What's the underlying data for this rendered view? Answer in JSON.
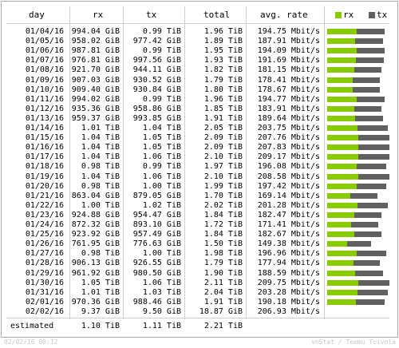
{
  "header": {
    "day": "day",
    "rx": "rx",
    "tx": "tx",
    "total": "total",
    "rate": "avg. rate"
  },
  "legend": {
    "rx": "rx",
    "tx": "tx",
    "rx_color": "#88cc00",
    "tx_color": "#606060"
  },
  "rows": [
    {
      "day": "01/04/16",
      "rx": "994.04 GiB",
      "tx": "0.99 TiB",
      "total": "1.96 TiB",
      "rate": "194.75 Mbit/s",
      "rx_frac": 0.52,
      "tx_frac": 0.48
    },
    {
      "day": "01/05/16",
      "rx": "958.02 GiB",
      "tx": "977.42 GiB",
      "total": "1.89 TiB",
      "rate": "187.91 Mbit/s",
      "rx_frac": 0.5,
      "tx_frac": 0.5
    },
    {
      "day": "01/06/16",
      "rx": "987.81 GiB",
      "tx": "0.99 TiB",
      "total": "1.95 TiB",
      "rate": "194.09 Mbit/s",
      "rx_frac": 0.52,
      "tx_frac": 0.48
    },
    {
      "day": "01/07/16",
      "rx": "976.81 GiB",
      "tx": "997.56 GiB",
      "total": "1.93 TiB",
      "rate": "191.69 Mbit/s",
      "rx_frac": 0.51,
      "tx_frac": 0.49
    },
    {
      "day": "01/08/16",
      "rx": "921.70 GiB",
      "tx": "944.11 GiB",
      "total": "1.82 TiB",
      "rate": "181.15 Mbit/s",
      "rx_frac": 0.5,
      "tx_frac": 0.5
    },
    {
      "day": "01/09/16",
      "rx": "907.03 GiB",
      "tx": "930.52 GiB",
      "total": "1.79 TiB",
      "rate": "178.41 Mbit/s",
      "rx_frac": 0.48,
      "tx_frac": 0.52
    },
    {
      "day": "01/10/16",
      "rx": "909.40 GiB",
      "tx": "930.84 GiB",
      "total": "1.80 TiB",
      "rate": "178.67 Mbit/s",
      "rx_frac": 0.48,
      "tx_frac": 0.52
    },
    {
      "day": "01/11/16",
      "rx": "994.02 GiB",
      "tx": "0.99 TiB",
      "total": "1.96 TiB",
      "rate": "194.77 Mbit/s",
      "rx_frac": 0.52,
      "tx_frac": 0.48
    },
    {
      "day": "01/12/16",
      "rx": "935.36 GiB",
      "tx": "958.86 GiB",
      "total": "1.85 TiB",
      "rate": "183.91 Mbit/s",
      "rx_frac": 0.5,
      "tx_frac": 0.5
    },
    {
      "day": "01/13/16",
      "rx": "959.37 GiB",
      "tx": "993.85 GiB",
      "total": "1.91 TiB",
      "rate": "189.64 Mbit/s",
      "rx_frac": 0.5,
      "tx_frac": 0.5
    },
    {
      "day": "01/14/16",
      "rx": "1.01 TiB",
      "tx": "1.04 TiB",
      "total": "2.05 TiB",
      "rate": "203.75 Mbit/s",
      "rx_frac": 0.5,
      "tx_frac": 0.5
    },
    {
      "day": "01/15/16",
      "rx": "1.04 TiB",
      "tx": "1.05 TiB",
      "total": "2.09 TiB",
      "rate": "207.76 Mbit/s",
      "rx_frac": 0.5,
      "tx_frac": 0.5
    },
    {
      "day": "01/16/16",
      "rx": "1.04 TiB",
      "tx": "1.05 TiB",
      "total": "2.09 TiB",
      "rate": "207.83 Mbit/s",
      "rx_frac": 0.5,
      "tx_frac": 0.5
    },
    {
      "day": "01/17/16",
      "rx": "1.04 TiB",
      "tx": "1.06 TiB",
      "total": "2.10 TiB",
      "rate": "209.17 Mbit/s",
      "rx_frac": 0.5,
      "tx_frac": 0.5
    },
    {
      "day": "01/18/16",
      "rx": "0.98 TiB",
      "tx": "0.99 TiB",
      "total": "1.97 TiB",
      "rate": "196.08 Mbit/s",
      "rx_frac": 0.5,
      "tx_frac": 0.5
    },
    {
      "day": "01/19/16",
      "rx": "1.04 TiB",
      "tx": "1.06 TiB",
      "total": "2.10 TiB",
      "rate": "208.58 Mbit/s",
      "rx_frac": 0.5,
      "tx_frac": 0.5
    },
    {
      "day": "01/20/16",
      "rx": "0.98 TiB",
      "tx": "1.00 TiB",
      "total": "1.99 TiB",
      "rate": "197.42 Mbit/s",
      "rx_frac": 0.5,
      "tx_frac": 0.5
    },
    {
      "day": "01/21/16",
      "rx": "863.04 GiB",
      "tx": "879.05 GiB",
      "total": "1.70 TiB",
      "rate": "169.14 Mbit/s",
      "rx_frac": 0.46,
      "tx_frac": 0.54
    },
    {
      "day": "01/22/16",
      "rx": "1.00 TiB",
      "tx": "1.02 TiB",
      "total": "2.02 TiB",
      "rate": "201.28 Mbit/s",
      "rx_frac": 0.5,
      "tx_frac": 0.5
    },
    {
      "day": "01/23/16",
      "rx": "924.88 GiB",
      "tx": "954.47 GiB",
      "total": "1.84 TiB",
      "rate": "182.47 Mbit/s",
      "rx_frac": 0.5,
      "tx_frac": 0.5
    },
    {
      "day": "01/24/16",
      "rx": "872.32 GiB",
      "tx": "893.10 GiB",
      "total": "1.72 TiB",
      "rate": "171.41 Mbit/s",
      "rx_frac": 0.47,
      "tx_frac": 0.53
    },
    {
      "day": "01/25/16",
      "rx": "923.92 GiB",
      "tx": "957.49 GiB",
      "total": "1.84 TiB",
      "rate": "182.67 Mbit/s",
      "rx_frac": 0.5,
      "tx_frac": 0.5
    },
    {
      "day": "01/26/16",
      "rx": "761.95 GiB",
      "tx": "776.63 GiB",
      "total": "1.50 TiB",
      "rate": "149.38 Mbit/s",
      "rx_frac": 0.46,
      "tx_frac": 0.54
    },
    {
      "day": "01/27/16",
      "rx": "0.98 TiB",
      "tx": "1.00 TiB",
      "total": "1.98 TiB",
      "rate": "196.96 Mbit/s",
      "rx_frac": 0.5,
      "tx_frac": 0.5
    },
    {
      "day": "01/28/16",
      "rx": "906.13 GiB",
      "tx": "926.55 GiB",
      "total": "1.79 TiB",
      "rate": "177.94 Mbit/s",
      "rx_frac": 0.5,
      "tx_frac": 0.5
    },
    {
      "day": "01/29/16",
      "rx": "961.92 GiB",
      "tx": "980.50 GiB",
      "total": "1.90 TiB",
      "rate": "188.59 Mbit/s",
      "rx_frac": 0.5,
      "tx_frac": 0.5
    },
    {
      "day": "01/30/16",
      "rx": "1.05 TiB",
      "tx": "1.06 TiB",
      "total": "2.11 TiB",
      "rate": "209.75 Mbit/s",
      "rx_frac": 0.5,
      "tx_frac": 0.5
    },
    {
      "day": "01/31/16",
      "rx": "1.01 TiB",
      "tx": "1.03 TiB",
      "total": "2.04 TiB",
      "rate": "203.28 Mbit/s",
      "rx_frac": 0.5,
      "tx_frac": 0.5
    },
    {
      "day": "02/01/16",
      "rx": "970.36 GiB",
      "tx": "988.46 GiB",
      "total": "1.91 TiB",
      "rate": "190.18 Mbit/s",
      "rx_frac": 0.5,
      "tx_frac": 0.5
    },
    {
      "day": "02/02/16",
      "rx": "9.37 GiB",
      "tx": "9.50 GiB",
      "total": "18.87 GiB",
      "rate": "206.93 Mbit/s",
      "rx_frac": 0.0,
      "tx_frac": 0.0
    }
  ],
  "estimated": {
    "label": "estimated",
    "rx": "1.10 TiB",
    "tx": "1.11 TiB",
    "total": "2.21 TiB"
  },
  "footer": {
    "timestamp": "02/02/16 00:12",
    "credit": "vnStat / Teemu Toivola"
  }
}
